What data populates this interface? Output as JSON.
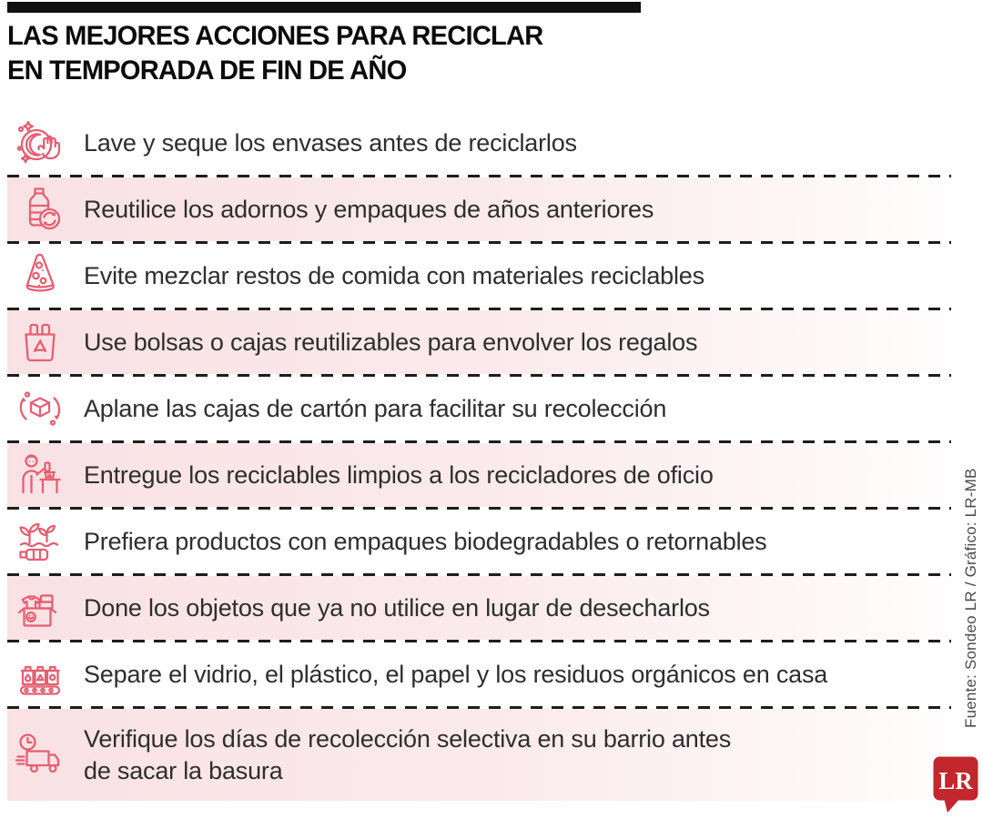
{
  "header": {
    "title": "LAS MEJORES ACCIONES PARA RECICLAR\nEN TEMPORADA DE FIN DE AÑO"
  },
  "rows": [
    {
      "icon": "wash-dish-icon",
      "text": "Lave y seque los envases antes de reciclarlos",
      "shaded": false
    },
    {
      "icon": "bottle-reuse-icon",
      "text": "Reutilice los adornos y empaques de años anteriores",
      "shaded": true
    },
    {
      "icon": "pizza-leftovers-icon",
      "text": "Evite mezclar restos de comida con materiales reciclables",
      "shaded": false
    },
    {
      "icon": "gift-bag-recycle-icon",
      "text": "Use bolsas o cajas reutilizables para envolver los regalos",
      "shaded": true
    },
    {
      "icon": "flatten-box-icon",
      "text": "Aplane las cajas de cartón para facilitar su recolección",
      "shaded": false
    },
    {
      "icon": "recycler-person-icon",
      "text": "Entregue los reciclables limpios a los recicladores de oficio",
      "shaded": true
    },
    {
      "icon": "biodegradable-icon",
      "text": "Prefiera productos con empaques biodegradables o retornables",
      "shaded": false
    },
    {
      "icon": "donation-box-icon",
      "text": "Done los objetos que ya no utilice en lugar de desecharlos",
      "shaded": true
    },
    {
      "icon": "waste-separation-icon",
      "text": "Separe el vidrio, el plástico, el papel y los residuos orgánicos en casa",
      "shaded": false
    },
    {
      "icon": "collection-truck-icon",
      "text": "Verifique los días de recolección selectiva en su barrio antes\nde sacar la basura",
      "shaded": true,
      "tall": true
    }
  ],
  "footer": {
    "source": "Fuente: Sondeo LR / Gráfico: LR-MB",
    "logo_text": "LR"
  },
  "colors": {
    "accent": "#e46072",
    "row_shade": "#f9e1e4",
    "logo_red": "#c2272d",
    "bar_black": "#111111",
    "text": "#2e2e2e"
  }
}
